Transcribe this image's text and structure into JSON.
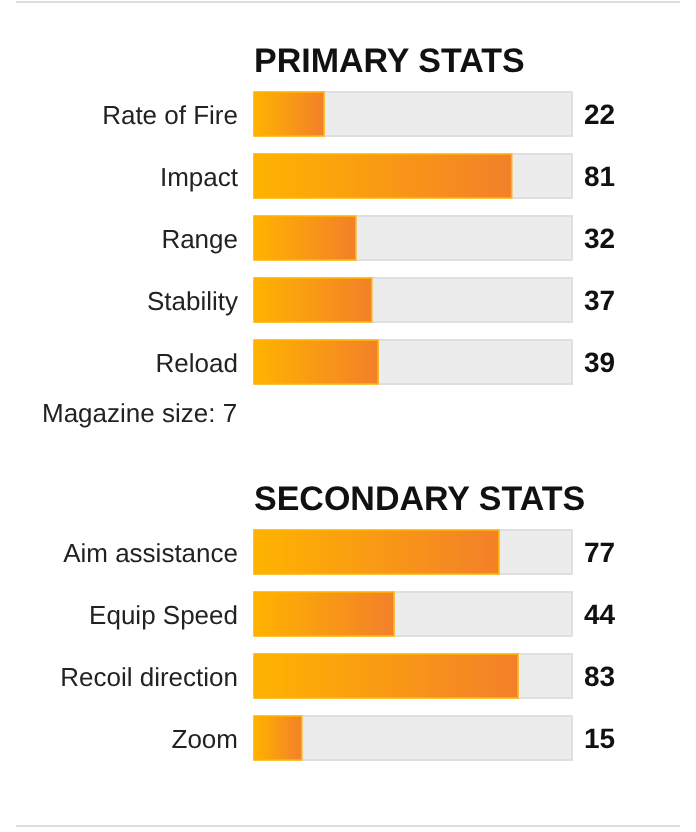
{
  "chart_data": [
    {
      "type": "bar",
      "orientation": "horizontal",
      "title": "PRIMARY STATS",
      "categories": [
        "Rate of Fire",
        "Impact",
        "Range",
        "Stability",
        "Reload"
      ],
      "values": [
        22,
        81,
        32,
        37,
        39
      ],
      "color": "#ffb300",
      "xlim": [
        0,
        100
      ],
      "data_labels": true,
      "tick_labels": "y",
      "annotations": [
        "Magazine size: 7"
      ]
    },
    {
      "type": "bar",
      "orientation": "horizontal",
      "title": "SECONDARY STATS",
      "categories": [
        "Aim assistance",
        "Equip Speed",
        "Recoil direction",
        "Zoom"
      ],
      "values": [
        77,
        44,
        83,
        15
      ],
      "color": "#ffb300",
      "xlim": [
        0,
        100
      ],
      "data_labels": true,
      "tick_labels": "y"
    }
  ]
}
